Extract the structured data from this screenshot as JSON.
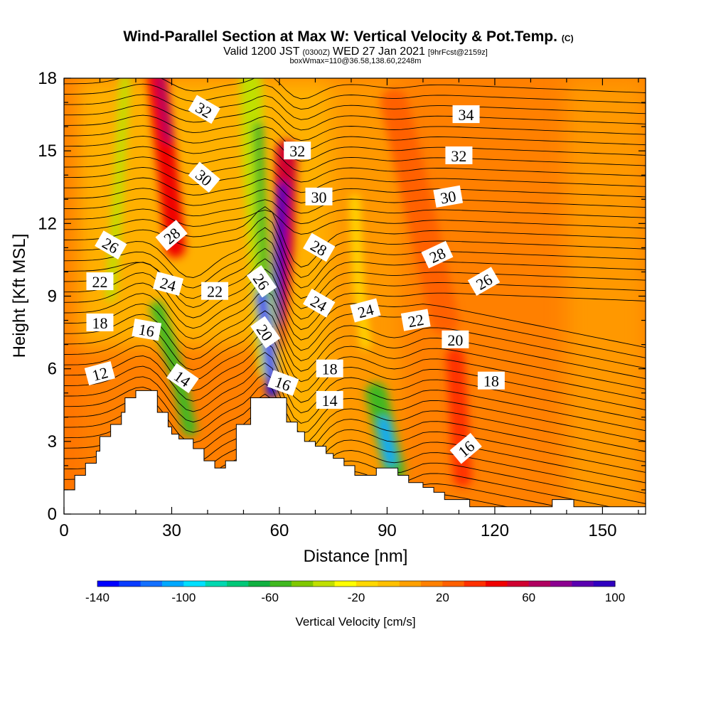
{
  "title": {
    "main": "Wind-Parallel Section at Max W: Vertical Velocity & Pot.Temp.",
    "main_suffix": "(C)",
    "valid_a": "Valid 1200 JST",
    "valid_b": "(0300Z)",
    "valid_c": "WED 27 Jan 2021",
    "valid_d": "[9hrFcst@2159z]",
    "box": "boxWmax=110@36.58,138.60,2248m"
  },
  "chart_data": {
    "type": "heatmap",
    "xlabel": "Distance [nm]",
    "ylabel": "Height [Kft MSL]",
    "xlim": [
      0,
      162
    ],
    "ylim": [
      0,
      18
    ],
    "x_ticks": [
      "0",
      "30",
      "60",
      "90",
      "120",
      "150"
    ],
    "x_tick_values": [
      0,
      30,
      60,
      90,
      120,
      150
    ],
    "y_ticks": [
      "0",
      "3",
      "6",
      "9",
      "12",
      "15",
      "18"
    ],
    "y_tick_values": [
      0,
      3,
      6,
      9,
      12,
      15,
      18
    ],
    "colorbar": {
      "title": "Vertical Velocity [cm/s]",
      "min": -140,
      "max": 100,
      "step": 10,
      "tick_labels": [
        "-140",
        "-100",
        "-60",
        "-20",
        "20",
        "60",
        "100"
      ],
      "tick_values": [
        -140,
        -100,
        -60,
        -20,
        20,
        60,
        100
      ],
      "colors": [
        "#0000ff",
        "#0a3cff",
        "#1470ff",
        "#00a8ff",
        "#00e0ff",
        "#00d8b0",
        "#00c878",
        "#10b040",
        "#40b820",
        "#80c800",
        "#c0e000",
        "#ffff00",
        "#ffd800",
        "#ffc000",
        "#ffa000",
        "#ff8000",
        "#ff6000",
        "#ff3000",
        "#f00000",
        "#d00030",
        "#b00060",
        "#8c0090",
        "#5a00b0",
        "#3000c0"
      ]
    },
    "updrafts": [
      {
        "x": 28,
        "y": 17.5,
        "w": 60
      },
      {
        "x": 60,
        "y": 10.5,
        "w": 95
      },
      {
        "x": 110,
        "y": 4,
        "w": 35
      },
      {
        "x": 100,
        "y": 12,
        "w": 8
      }
    ],
    "downdrafts": [
      {
        "x": 57,
        "y": 7,
        "w": -140
      },
      {
        "x": 90,
        "y": 3,
        "w": -110
      },
      {
        "x": 53,
        "y": 15,
        "w": -60
      },
      {
        "x": 32,
        "y": 5.5,
        "w": -60
      }
    ],
    "terrain": [
      {
        "x": 0,
        "h": 1.0
      },
      {
        "x": 3,
        "h": 1.0
      },
      {
        "x": 3,
        "h": 1.6
      },
      {
        "x": 6,
        "h": 1.6
      },
      {
        "x": 6,
        "h": 2.1
      },
      {
        "x": 9,
        "h": 2.1
      },
      {
        "x": 9,
        "h": 2.6
      },
      {
        "x": 10,
        "h": 2.6
      },
      {
        "x": 10,
        "h": 3.2
      },
      {
        "x": 13,
        "h": 3.2
      },
      {
        "x": 13,
        "h": 3.7
      },
      {
        "x": 16,
        "h": 3.7
      },
      {
        "x": 16,
        "h": 4.2
      },
      {
        "x": 17,
        "h": 4.2
      },
      {
        "x": 17,
        "h": 4.8
      },
      {
        "x": 20,
        "h": 4.8
      },
      {
        "x": 20,
        "h": 5.1
      },
      {
        "x": 26,
        "h": 5.1
      },
      {
        "x": 26,
        "h": 4.2
      },
      {
        "x": 29,
        "h": 4.2
      },
      {
        "x": 29,
        "h": 3.6
      },
      {
        "x": 30,
        "h": 3.6
      },
      {
        "x": 30,
        "h": 3.3
      },
      {
        "x": 32,
        "h": 3.3
      },
      {
        "x": 32,
        "h": 3.1
      },
      {
        "x": 36,
        "h": 3.1
      },
      {
        "x": 36,
        "h": 2.7
      },
      {
        "x": 39,
        "h": 2.7
      },
      {
        "x": 39,
        "h": 2.2
      },
      {
        "x": 42,
        "h": 2.2
      },
      {
        "x": 42,
        "h": 1.9
      },
      {
        "x": 45,
        "h": 1.9
      },
      {
        "x": 45,
        "h": 2.2
      },
      {
        "x": 48,
        "h": 2.2
      },
      {
        "x": 48,
        "h": 3.7
      },
      {
        "x": 52,
        "h": 3.7
      },
      {
        "x": 52,
        "h": 4.8
      },
      {
        "x": 62,
        "h": 4.8
      },
      {
        "x": 62,
        "h": 3.8
      },
      {
        "x": 65,
        "h": 3.8
      },
      {
        "x": 65,
        "h": 3.4
      },
      {
        "x": 67,
        "h": 3.4
      },
      {
        "x": 67,
        "h": 3.0
      },
      {
        "x": 70,
        "h": 3.0
      },
      {
        "x": 70,
        "h": 2.8
      },
      {
        "x": 73,
        "h": 2.8
      },
      {
        "x": 73,
        "h": 2.5
      },
      {
        "x": 75,
        "h": 2.5
      },
      {
        "x": 75,
        "h": 2.3
      },
      {
        "x": 78,
        "h": 2.3
      },
      {
        "x": 78,
        "h": 2.0
      },
      {
        "x": 81,
        "h": 2.0
      },
      {
        "x": 81,
        "h": 1.6
      },
      {
        "x": 87,
        "h": 1.6
      },
      {
        "x": 87,
        "h": 1.9
      },
      {
        "x": 93,
        "h": 1.9
      },
      {
        "x": 93,
        "h": 1.6
      },
      {
        "x": 96,
        "h": 1.6
      },
      {
        "x": 96,
        "h": 1.3
      },
      {
        "x": 100,
        "h": 1.3
      },
      {
        "x": 100,
        "h": 1.1
      },
      {
        "x": 103,
        "h": 1.1
      },
      {
        "x": 103,
        "h": 0.9
      },
      {
        "x": 106,
        "h": 0.9
      },
      {
        "x": 106,
        "h": 0.6
      },
      {
        "x": 113,
        "h": 0.6
      },
      {
        "x": 113,
        "h": 0.3
      },
      {
        "x": 136,
        "h": 0.3
      },
      {
        "x": 136,
        "h": 0.6
      },
      {
        "x": 142,
        "h": 0.6
      },
      {
        "x": 142,
        "h": 0.3
      },
      {
        "x": 162,
        "h": 0.3
      }
    ],
    "contour_labels": [
      {
        "text": "32",
        "x": 39,
        "y": 16.7,
        "angle": 30
      },
      {
        "text": "30",
        "x": 39,
        "y": 13.9,
        "angle": 40
      },
      {
        "text": "28",
        "x": 30,
        "y": 11.5,
        "angle": -40
      },
      {
        "text": "26",
        "x": 13,
        "y": 11.1,
        "angle": 30
      },
      {
        "text": "24",
        "x": 29,
        "y": 9.5,
        "angle": 15
      },
      {
        "text": "22",
        "x": 10,
        "y": 9.6,
        "angle": 0
      },
      {
        "text": "22",
        "x": 42,
        "y": 9.2,
        "angle": 0
      },
      {
        "text": "18",
        "x": 10,
        "y": 7.9,
        "angle": 0
      },
      {
        "text": "16",
        "x": 23,
        "y": 7.6,
        "angle": 10
      },
      {
        "text": "14",
        "x": 33,
        "y": 5.6,
        "angle": 35
      },
      {
        "text": "12",
        "x": 10,
        "y": 5.8,
        "angle": -15
      },
      {
        "text": "26",
        "x": 55,
        "y": 9.6,
        "angle": 55
      },
      {
        "text": "20",
        "x": 56,
        "y": 7.5,
        "angle": 55
      },
      {
        "text": "16",
        "x": 61,
        "y": 5.4,
        "angle": 20
      },
      {
        "text": "32",
        "x": 65,
        "y": 15.0,
        "angle": 0
      },
      {
        "text": "30",
        "x": 71,
        "y": 13.1,
        "angle": 0
      },
      {
        "text": "28",
        "x": 71,
        "y": 11.0,
        "angle": 30
      },
      {
        "text": "24",
        "x": 71,
        "y": 8.7,
        "angle": 30
      },
      {
        "text": "24",
        "x": 84,
        "y": 8.4,
        "angle": -15
      },
      {
        "text": "22",
        "x": 98,
        "y": 8.0,
        "angle": -10
      },
      {
        "text": "18",
        "x": 74,
        "y": 6.0,
        "angle": 0
      },
      {
        "text": "14",
        "x": 74,
        "y": 4.7,
        "angle": 0
      },
      {
        "text": "34",
        "x": 112,
        "y": 16.5,
        "angle": 0
      },
      {
        "text": "32",
        "x": 110,
        "y": 14.8,
        "angle": 0
      },
      {
        "text": "30",
        "x": 107,
        "y": 13.1,
        "angle": -10
      },
      {
        "text": "28",
        "x": 104,
        "y": 10.7,
        "angle": -25
      },
      {
        "text": "26",
        "x": 117,
        "y": 9.6,
        "angle": -30
      },
      {
        "text": "20",
        "x": 109,
        "y": 7.2,
        "angle": 0
      },
      {
        "text": "18",
        "x": 119,
        "y": 5.5,
        "angle": 0
      },
      {
        "text": "16",
        "x": 112,
        "y": 2.7,
        "angle": -40
      }
    ]
  }
}
